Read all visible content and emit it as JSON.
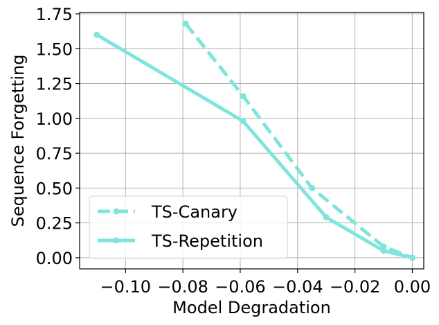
{
  "chart_data": {
    "type": "line",
    "title": "",
    "xlabel": "Model Degradation",
    "ylabel": "Sequence Forgetting",
    "xlim": [
      -0.116,
      0.004
    ],
    "ylim": [
      -0.08,
      1.76
    ],
    "xticks": [
      -0.1,
      -0.08,
      -0.06,
      -0.04,
      -0.02,
      0.0
    ],
    "xtick_labels": [
      "−0.10",
      "−0.08",
      "−0.06",
      "−0.04",
      "−0.02",
      "0.00"
    ],
    "yticks": [
      0.0,
      0.25,
      0.5,
      0.75,
      1.0,
      1.25,
      1.5,
      1.75
    ],
    "ytick_labels": [
      "0.00",
      "0.25",
      "0.50",
      "0.75",
      "1.00",
      "1.25",
      "1.50",
      "1.75"
    ],
    "grid": true,
    "legend_position": "lower-left",
    "series": [
      {
        "name": "TS-Canary",
        "line_style": "dashed",
        "color": "#7fe5dc",
        "x": [
          -0.079,
          -0.059,
          -0.035,
          -0.01,
          0.0
        ],
        "y": [
          1.68,
          1.16,
          0.5,
          0.08,
          0.0
        ]
      },
      {
        "name": "TS-Repetition",
        "line_style": "solid",
        "color": "#7fe5dc",
        "x": [
          -0.11,
          -0.059,
          -0.03,
          -0.01,
          0.0
        ],
        "y": [
          1.6,
          0.98,
          0.29,
          0.05,
          0.0
        ]
      }
    ]
  }
}
